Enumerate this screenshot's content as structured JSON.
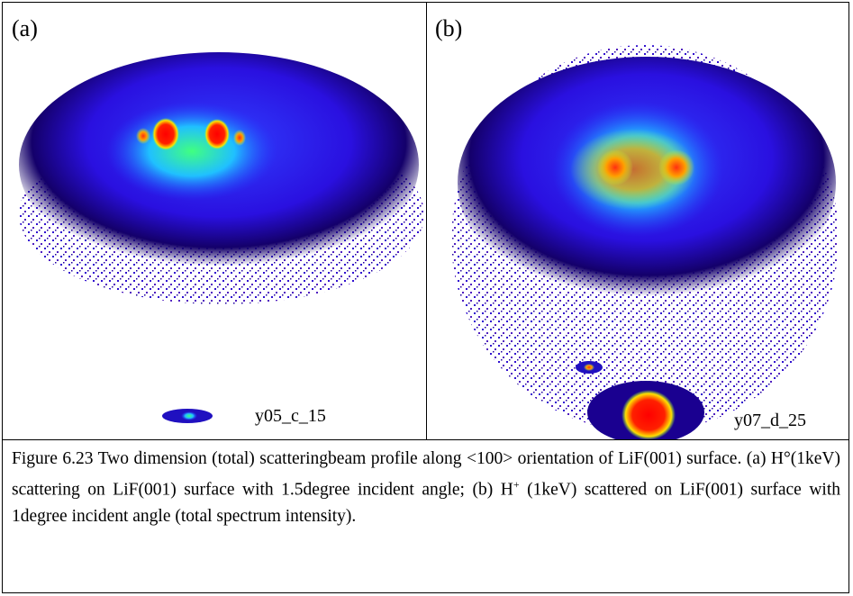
{
  "panels": [
    {
      "label": "(a)",
      "tag": "y05_c_15"
    },
    {
      "label": "(b)",
      "tag": "y07_d_25"
    }
  ],
  "caption": {
    "before": "Figure 6.23 Two dimension (total) scatteringbeam profile along <100> orientation of LiF(001) surface. (a) H°(1keV) scattering on LiF(001) surface with 1.5degree incident angle; (b) H",
    "sup": "+",
    "after": " (1keV) scattered on LiF(001) surface with 1degree incident angle (total spectrum intensity)."
  }
}
